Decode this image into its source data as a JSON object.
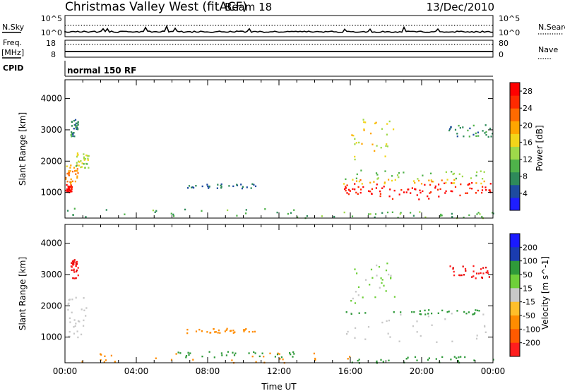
{
  "header": {
    "title": "Christmas Valley West (fitACF)",
    "beam": "Beam 18",
    "date": "13/Dec/2010"
  },
  "top_panels": {
    "nsky_label": "N.Sky",
    "nsearch_label": "N.Search",
    "nsky_ticks": [
      "10^5",
      "10^0"
    ],
    "nsearch_ticks": [
      "10^5",
      "10^0"
    ],
    "freq_label": "Freq.",
    "freq_unit": "[MHz]",
    "freq_ticks": [
      "18",
      "8"
    ],
    "nave_label": "Nave",
    "nave_ticks": [
      "80",
      "0"
    ],
    "cpid_label": "CPID",
    "cpid_text": "normal 150 RF"
  },
  "colors": {
    "power_scale": [
      "#1e1eff",
      "#1e4ba0",
      "#2e8a5a",
      "#4fb24a",
      "#9ed94a",
      "#f2d51a",
      "#ffa500",
      "#ff6a00",
      "#ff2a00",
      "#ff0000"
    ],
    "velocity_scale": [
      "#1a1aff",
      "#1a3cb0",
      "#1e6f7a",
      "#2f9a3a",
      "#6fcf3a",
      "#c8c8c8",
      "#ffbf2a",
      "#ff8c00",
      "#ff5a00",
      "#ff1e1e",
      "#e60000"
    ]
  },
  "chart_data": [
    {
      "type": "heatmap",
      "name": "power",
      "xlabel": "",
      "ylabel": "Slant Range [km]",
      "xlim": [
        0,
        24
      ],
      "ylim": [
        180,
        4600
      ],
      "yticks": [
        1000,
        2000,
        3000,
        4000
      ],
      "colorbar_label": "Power [dB]",
      "colorbar_ticks": [
        4,
        8,
        12,
        16,
        20,
        24,
        28
      ],
      "colorbar_range": [
        0,
        30
      ],
      "patches": [
        {
          "t0": 0.0,
          "t1": 0.35,
          "r0": 1000,
          "r1": 1300,
          "value": 29
        },
        {
          "t0": 0.0,
          "t1": 0.8,
          "r0": 1300,
          "r1": 1900,
          "value": 20
        },
        {
          "t0": 0.4,
          "t1": 1.3,
          "r0": 1800,
          "r1": 2300,
          "value": 14
        },
        {
          "t0": 0.3,
          "t1": 0.7,
          "r0": 2800,
          "r1": 3400,
          "value": 7
        },
        {
          "t0": 6.8,
          "t1": 10.8,
          "r0": 1150,
          "r1": 1300,
          "value": 6
        },
        {
          "t0": 0.0,
          "t1": 16.0,
          "r0": 200,
          "r1": 520,
          "value": 10
        },
        {
          "t0": 16.0,
          "t1": 24.0,
          "r0": 200,
          "r1": 400,
          "value": 10
        },
        {
          "t0": 15.6,
          "t1": 24.0,
          "r0": 1450,
          "r1": 1750,
          "value": 12
        },
        {
          "t0": 15.6,
          "t1": 24.0,
          "r0": 1300,
          "r1": 1450,
          "value": 19
        },
        {
          "t0": 15.6,
          "t1": 18.0,
          "r0": 900,
          "r1": 1300,
          "value": 28
        },
        {
          "t0": 18.0,
          "t1": 21.0,
          "r0": 800,
          "r1": 1300,
          "value": 28
        },
        {
          "t0": 21.0,
          "t1": 24.0,
          "r0": 900,
          "r1": 1350,
          "value": 28
        },
        {
          "t0": 16.0,
          "t1": 18.5,
          "r0": 2000,
          "r1": 3400,
          "value": 16
        },
        {
          "t0": 21.5,
          "t1": 24.0,
          "r0": 2800,
          "r1": 3200,
          "value": 8
        }
      ]
    },
    {
      "type": "heatmap",
      "name": "velocity",
      "xlabel": "Time UT",
      "ylabel": "Slant Range [km]",
      "xlim": [
        0,
        24
      ],
      "ylim": [
        180,
        4600
      ],
      "xticks": [
        "00:00",
        "04:00",
        "08:00",
        "12:00",
        "16:00",
        "20:00",
        "00:00"
      ],
      "yticks": [
        1000,
        2000,
        3000,
        4000
      ],
      "colorbar_label": "Velocity [m s^-1]",
      "colorbar_ticks": [
        200,
        100,
        50,
        15,
        -15,
        -50,
        -100,
        -200
      ],
      "patches": [
        {
          "t0": 0.0,
          "t1": 1.2,
          "r0": 1000,
          "r1": 2300,
          "value": 0
        },
        {
          "t0": 0.3,
          "t1": 0.7,
          "r0": 2900,
          "r1": 3500,
          "value": -200
        },
        {
          "t0": 6.8,
          "t1": 10.8,
          "r0": 1150,
          "r1": 1300,
          "value": -60
        },
        {
          "t0": 0.0,
          "t1": 16.0,
          "r0": 200,
          "r1": 520,
          "value": -60
        },
        {
          "t0": 6.0,
          "t1": 13.0,
          "r0": 380,
          "r1": 560,
          "value": 60
        },
        {
          "t0": 15.6,
          "t1": 24.0,
          "r0": 850,
          "r1": 1800,
          "value": 0
        },
        {
          "t0": 15.6,
          "t1": 24.0,
          "r0": 1750,
          "r1": 1900,
          "value": 60
        },
        {
          "t0": 16.0,
          "t1": 18.5,
          "r0": 2000,
          "r1": 3400,
          "value": 20
        },
        {
          "t0": 21.5,
          "t1": 24.0,
          "r0": 2900,
          "r1": 3300,
          "value": -200
        },
        {
          "t0": 16.0,
          "t1": 24.0,
          "r0": 200,
          "r1": 400,
          "value": 60
        }
      ]
    }
  ]
}
